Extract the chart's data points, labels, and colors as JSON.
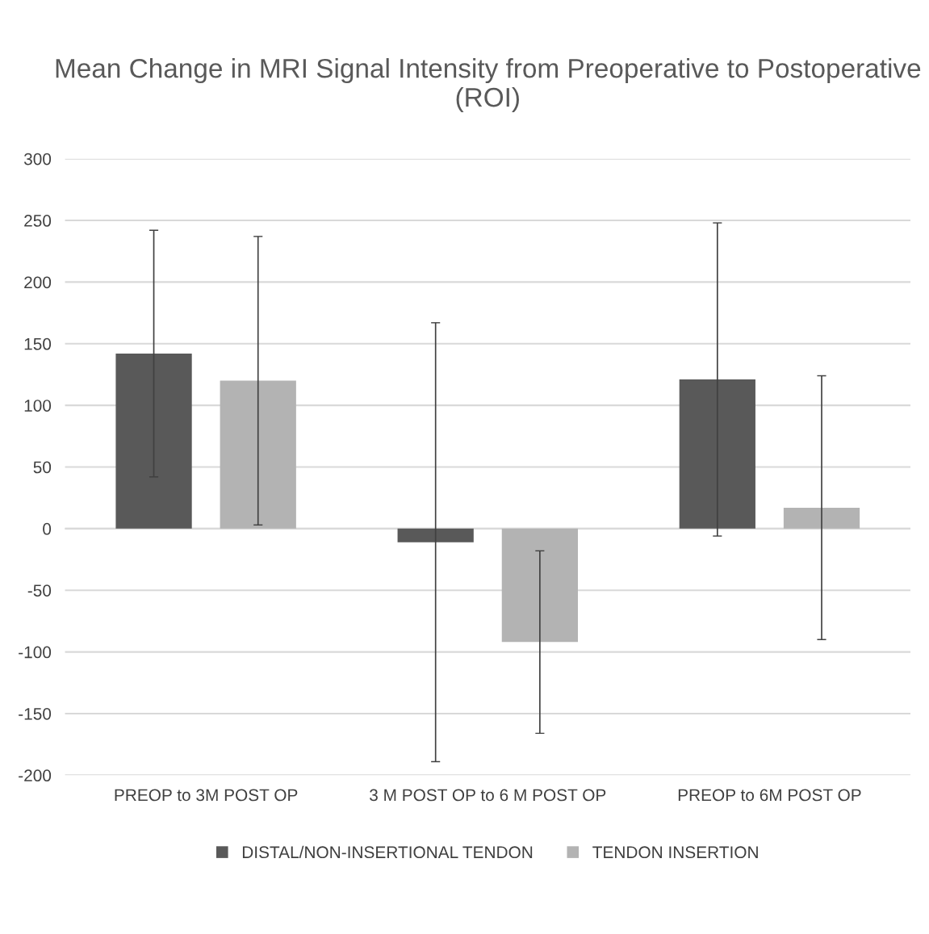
{
  "chart_data": {
    "type": "bar",
    "title": "Mean Change in MRI Signal Intensity from Preoperative to Postoperative (ROI)",
    "categories": [
      "PREOP to 3M POST OP",
      "3 M POST OP to 6 M POST OP",
      "PREOP to 6M POST OP"
    ],
    "series": [
      {
        "name": "DISTAL/NON-INSERTIONAL TENDON",
        "color": "#595959",
        "values": [
          142,
          -11,
          121
        ],
        "errors": [
          100,
          178,
          127
        ]
      },
      {
        "name": "TENDON INSERTION",
        "color": "#b3b3b3",
        "values": [
          120,
          -92,
          17
        ],
        "errors": [
          117,
          74,
          107
        ]
      }
    ],
    "ylim": [
      -200,
      300
    ],
    "yticks": [
      -200,
      -150,
      -100,
      -50,
      0,
      50,
      100,
      150,
      200,
      250,
      300
    ],
    "grid": "y",
    "legend": "bottom"
  }
}
